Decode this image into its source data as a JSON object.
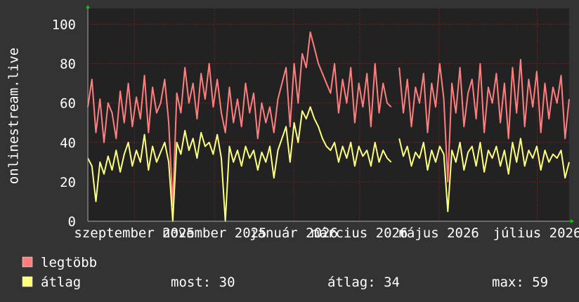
{
  "chart_data": {
    "type": "line",
    "y_label": "onlinestream.live",
    "ylim": [
      0,
      108
    ],
    "yticks": [
      0,
      20,
      40,
      60,
      80,
      100
    ],
    "xlim": [
      0,
      119
    ],
    "xticks": [
      {
        "value": 11.5,
        "label": "szeptember 2025"
      },
      {
        "value": 31.3,
        "label": "november 2025"
      },
      {
        "value": 50.9,
        "label": "január 2026"
      },
      {
        "value": 67.2,
        "label": "március 2026"
      },
      {
        "value": 86.8,
        "label": "május 2026"
      },
      {
        "value": 111.1,
        "label": "július 2026"
      }
    ],
    "grid": true,
    "series": [
      {
        "name": "legtöbb",
        "color": "#ff7f7f",
        "values": [
          58,
          72,
          45,
          62,
          40,
          60,
          55,
          42,
          66,
          50,
          70,
          48,
          63,
          52,
          74,
          45,
          68,
          55,
          60,
          72,
          50,
          8,
          65,
          55,
          78,
          60,
          70,
          52,
          75,
          62,
          80,
          58,
          72,
          55,
          45,
          68,
          50,
          62,
          48,
          70,
          55,
          65,
          42,
          60,
          50,
          58,
          45,
          62,
          70,
          78,
          48,
          80,
          60,
          85,
          78,
          96,
          88,
          80,
          75,
          70,
          65,
          80,
          55,
          72,
          60,
          78,
          50,
          70,
          58,
          75,
          48,
          80,
          55,
          70,
          60,
          58,
          null,
          78,
          55,
          72,
          48,
          68,
          60,
          75,
          45,
          70,
          58,
          80,
          62,
          20,
          70,
          55,
          78,
          48,
          65,
          72,
          52,
          80,
          45,
          68,
          60,
          75,
          50,
          70,
          42,
          78,
          55,
          82,
          48,
          72,
          58,
          76,
          45,
          70,
          52,
          68,
          60,
          74,
          42,
          62
        ]
      },
      {
        "name": "átlag",
        "color": "#ffff80",
        "values": [
          32,
          28,
          10,
          30,
          24,
          33,
          26,
          36,
          25,
          34,
          40,
          28,
          36,
          30,
          44,
          26,
          38,
          30,
          35,
          40,
          30,
          0,
          40,
          34,
          46,
          36,
          42,
          32,
          45,
          38,
          40,
          34,
          44,
          32,
          0,
          38,
          30,
          36,
          28,
          38,
          32,
          36,
          26,
          35,
          30,
          38,
          22,
          36,
          42,
          48,
          30,
          50,
          40,
          56,
          52,
          58,
          52,
          48,
          42,
          38,
          36,
          40,
          30,
          38,
          32,
          40,
          28,
          38,
          33,
          36,
          28,
          40,
          30,
          36,
          32,
          30,
          null,
          42,
          33,
          38,
          28,
          35,
          32,
          40,
          26,
          36,
          30,
          38,
          34,
          5,
          36,
          30,
          40,
          26,
          35,
          38,
          28,
          40,
          25,
          36,
          32,
          38,
          28,
          36,
          24,
          40,
          30,
          42,
          28,
          36,
          32,
          38,
          26,
          36,
          30,
          34,
          32,
          36,
          22,
          30
        ]
      }
    ],
    "stats": [
      {
        "label": "most:",
        "value": 30
      },
      {
        "label": "átlag:",
        "value": 34
      },
      {
        "label": "max:",
        "value": 59
      }
    ]
  }
}
